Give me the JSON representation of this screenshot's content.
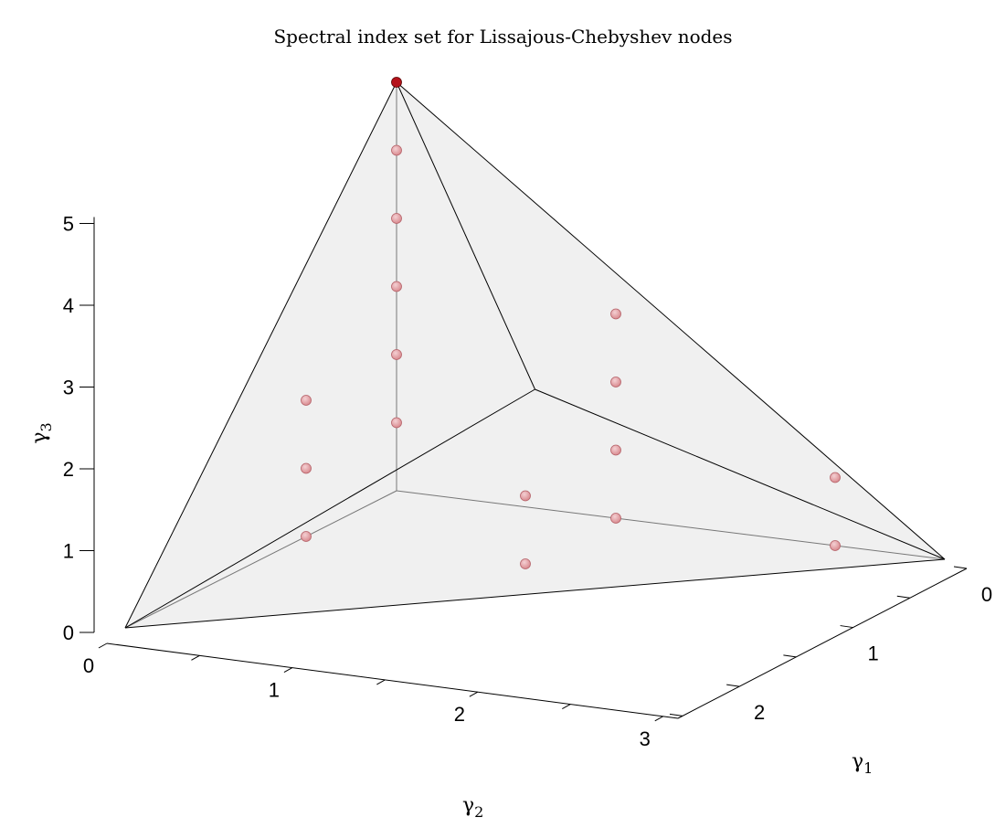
{
  "chart_data": {
    "type": "scatter",
    "projection": "3d",
    "title": "Spectral index set for Lissajous-Chebyshev nodes",
    "axes": {
      "x": {
        "symbol": "γ",
        "index": "1",
        "ticks": [
          "0",
          "1",
          "2"
        ],
        "lim": [
          0,
          2.5
        ]
      },
      "y": {
        "symbol": "γ",
        "index": "2",
        "ticks": [
          "0",
          "1",
          "2",
          "3"
        ],
        "lim": [
          0,
          3
        ]
      },
      "z": {
        "symbol": "γ",
        "index": "3",
        "ticks": [
          "0",
          "1",
          "2",
          "3",
          "4",
          "5"
        ],
        "lim": [
          0,
          5
        ]
      }
    },
    "grid": false,
    "polytope_vertices": [
      [
        0,
        0,
        0
      ],
      [
        2.5,
        0,
        0
      ],
      [
        0,
        3,
        0
      ],
      [
        0,
        0,
        6
      ],
      [
        1.25,
        1.5,
        3
      ]
    ],
    "points": [
      {
        "g1": 0,
        "g2": 0,
        "g3": 1
      },
      {
        "g1": 0,
        "g2": 0,
        "g3": 2
      },
      {
        "g1": 0,
        "g2": 0,
        "g3": 3
      },
      {
        "g1": 0,
        "g2": 0,
        "g3": 4
      },
      {
        "g1": 0,
        "g2": 0,
        "g3": 5
      },
      {
        "g1": 0,
        "g2": 0,
        "g3": 6
      },
      {
        "g1": 0,
        "g2": 1,
        "g3": 0
      },
      {
        "g1": 0,
        "g2": 1,
        "g3": 1
      },
      {
        "g1": 0,
        "g2": 1,
        "g3": 2
      },
      {
        "g1": 1,
        "g2": 0,
        "g3": 0
      },
      {
        "g1": 1,
        "g2": 0,
        "g3": 1
      },
      {
        "g1": 1,
        "g2": 0,
        "g3": 2
      },
      {
        "g1": 1,
        "g2": 0,
        "g3": 3
      },
      {
        "g1": 1,
        "g2": 1,
        "g3": 0
      },
      {
        "g1": 1,
        "g2": 1,
        "g3": 1
      },
      {
        "g1": 2,
        "g2": 0,
        "g3": 0
      },
      {
        "g1": 2,
        "g2": 0,
        "g3": 1
      }
    ],
    "highlighted_point": {
      "g1": 0,
      "g2": 0,
      "g3": 6
    },
    "colors": {
      "point": "#d98a8f",
      "point_edge": "#b56168",
      "highlight": "#b5121b",
      "face": "#d9d9d9",
      "edge": "#000000"
    }
  }
}
